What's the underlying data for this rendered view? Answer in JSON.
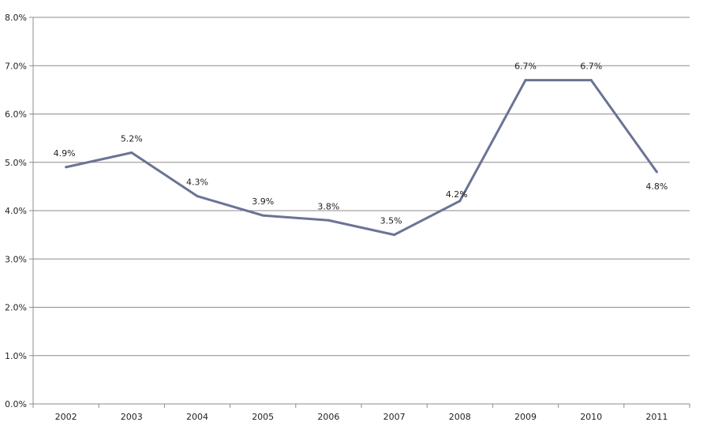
{
  "chart_data": {
    "type": "line",
    "title": "",
    "xlabel": "",
    "ylabel": "",
    "categories": [
      "2002",
      "2003",
      "2004",
      "2005",
      "2006",
      "2007",
      "2008",
      "2009",
      "2010",
      "2011"
    ],
    "series": [
      {
        "values": [
          4.9,
          5.2,
          4.3,
          3.9,
          3.8,
          3.5,
          4.2,
          6.7,
          6.7,
          4.8
        ],
        "color": "#6b7395"
      }
    ],
    "data_labels": [
      "4.9%",
      "5.2%",
      "4.3%",
      "3.9%",
      "3.8%",
      "3.5%",
      "4.2%",
      "6.7%",
      "6.7%",
      "4.8%"
    ],
    "ylim": [
      0,
      8
    ],
    "y_ticks": [
      0,
      1,
      2,
      3,
      4,
      5,
      6,
      7,
      8
    ],
    "y_tick_labels": [
      "0.0%",
      "1.0%",
      "2.0%",
      "3.0%",
      "4.0%",
      "5.0%",
      "6.0%",
      "7.0%",
      "8.0%"
    ],
    "grid": true,
    "legend": "none",
    "gridline_color": "#8c8c8c",
    "axis_color": "#8c8c8c"
  }
}
